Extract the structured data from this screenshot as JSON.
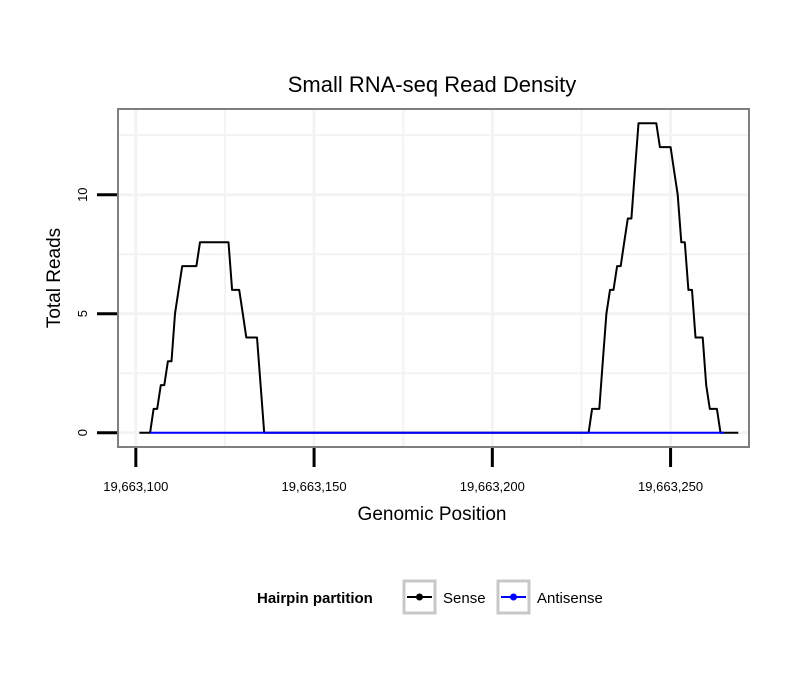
{
  "chart_data": {
    "type": "line",
    "title": "Small RNA-seq Read Density",
    "xlabel": "Genomic Position",
    "ylabel": "Total Reads",
    "xlim": [
      19663095,
      19663272
    ],
    "ylim": [
      -0.6,
      13.6
    ],
    "x_ticks": [
      {
        "value": 19663100,
        "label": "19,663,100"
      },
      {
        "value": 19663150,
        "label": "19,663,150"
      },
      {
        "value": 19663200,
        "label": "19,663,200"
      },
      {
        "value": 19663250,
        "label": "19,663,250"
      }
    ],
    "y_ticks": [
      {
        "value": 0,
        "label": "0"
      },
      {
        "value": 5,
        "label": "5"
      },
      {
        "value": 10,
        "label": "10"
      }
    ],
    "grid": true,
    "legend": {
      "title": "Hairpin partition",
      "position": "bottom"
    },
    "series": [
      {
        "name": "Sense",
        "color": "#000000",
        "x": [
          19663101,
          19663104,
          19663105,
          19663106,
          19663107,
          19663108,
          19663109,
          19663110,
          19663111,
          19663112,
          19663113,
          19663117,
          19663118,
          19663126,
          19663127,
          19663129,
          19663130,
          19663131,
          19663132,
          19663134,
          19663135,
          19663136,
          19663227,
          19663228,
          19663230,
          19663231,
          19663232,
          19663233,
          19663234,
          19663235,
          19663236,
          19663237,
          19663238,
          19663239,
          19663240,
          19663241,
          19663242,
          19663246,
          19663247,
          19663249,
          19663250,
          19663251,
          19663252,
          19663253,
          19663254,
          19663255,
          19663256,
          19663257,
          19663258,
          19663259,
          19663260,
          19663261,
          19663262,
          19663263,
          19663264,
          19663266,
          19663269
        ],
        "values": [
          0,
          0,
          1,
          1,
          2,
          2,
          3,
          3,
          5,
          6,
          7,
          7,
          8,
          8,
          6,
          6,
          5,
          4,
          4,
          4,
          2,
          0,
          0,
          1,
          1,
          3,
          5,
          6,
          6,
          7,
          7,
          8,
          9,
          9,
          11,
          13,
          13,
          13,
          12,
          12,
          12,
          11,
          10,
          8,
          8,
          6,
          6,
          4,
          4,
          4,
          2,
          1,
          1,
          1,
          0,
          0,
          0
        ]
      },
      {
        "name": "Antisense",
        "color": "#0000ff",
        "x": [
          19663104,
          19663136,
          19663227,
          19663265
        ],
        "values": [
          0,
          0,
          0,
          0
        ]
      }
    ]
  }
}
